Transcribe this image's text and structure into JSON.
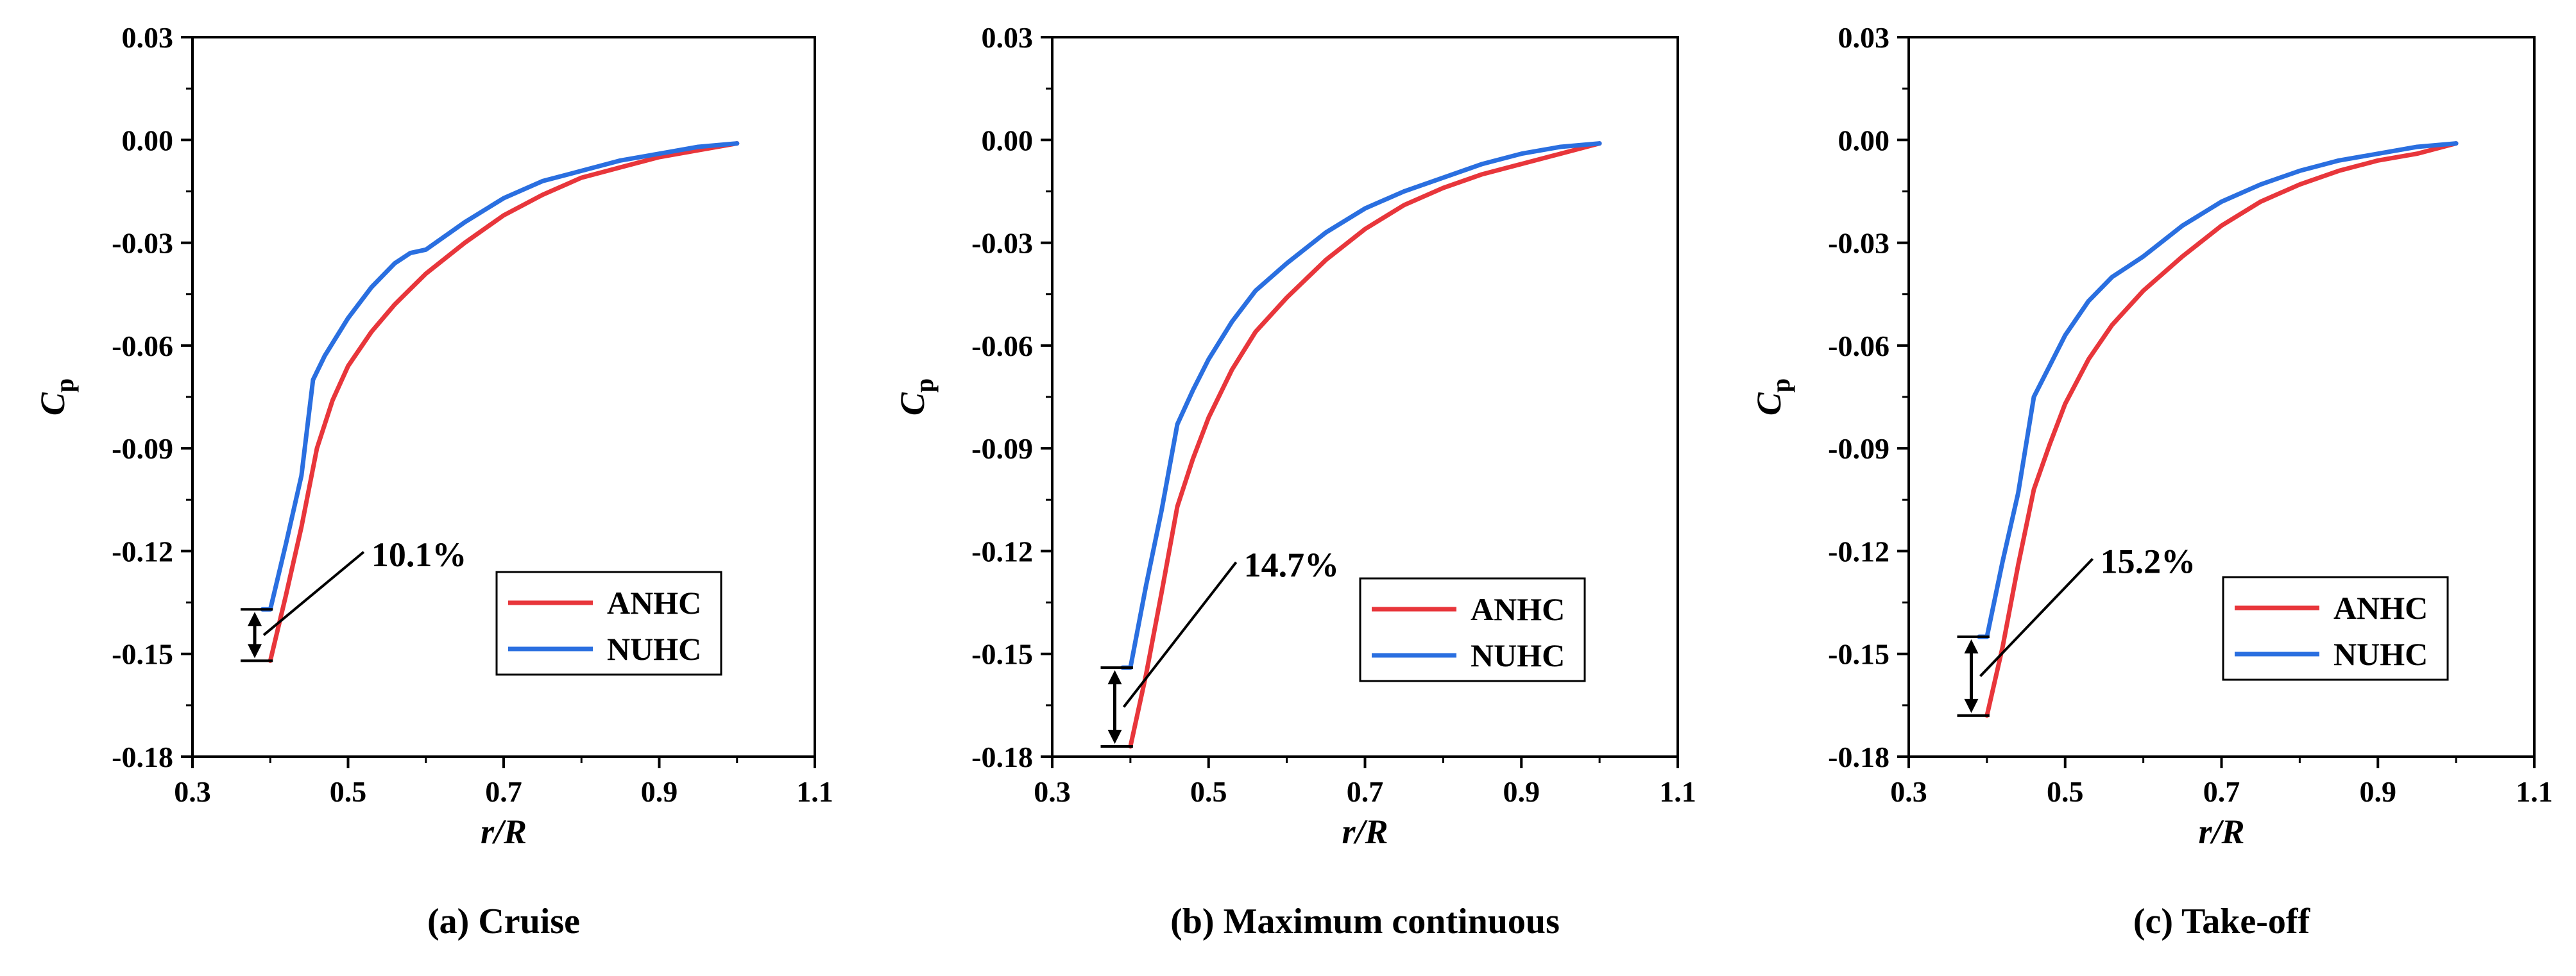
{
  "figure": {
    "captions": [
      "(a) Cruise",
      "(b) Maximum continuous",
      "(c) Take-off"
    ]
  },
  "colors": {
    "ANHC": "#e8363b",
    "NUHC": "#2a6fe0",
    "axis": "#000000"
  },
  "chart_data": [
    {
      "type": "line",
      "title": "(a) Cruise",
      "xlabel": "r/R",
      "ylabel": "Cp",
      "ylabel_main": "C",
      "ylabel_sub": "p",
      "xlim": [
        0.3,
        1.1
      ],
      "ylim": [
        -0.18,
        0.03
      ],
      "xticks": [
        0.3,
        0.5,
        0.7,
        0.9,
        1.1
      ],
      "xtick_labels": [
        "0.3",
        "0.5",
        "0.7",
        "0.9",
        "1.1"
      ],
      "yticks": [
        0.03,
        0.0,
        -0.03,
        -0.06,
        -0.09,
        -0.12,
        -0.15,
        -0.18
      ],
      "ytick_labels": [
        "0.03",
        "0.00",
        "-0.03",
        "-0.06",
        "-0.09",
        "-0.12",
        "-0.15",
        "-0.18"
      ],
      "legend": [
        "ANHC",
        "NUHC"
      ],
      "legend_position": "lower-right",
      "series": [
        {
          "name": "ANHC",
          "x": [
            0.4,
            0.42,
            0.44,
            0.46,
            0.48,
            0.5,
            0.53,
            0.56,
            0.6,
            0.65,
            0.7,
            0.75,
            0.8,
            0.85,
            0.9,
            0.95,
            1.0
          ],
          "y": [
            -0.152,
            -0.133,
            -0.113,
            -0.09,
            -0.076,
            -0.066,
            -0.056,
            -0.048,
            -0.039,
            -0.03,
            -0.022,
            -0.016,
            -0.011,
            -0.008,
            -0.005,
            -0.003,
            -0.001
          ]
        },
        {
          "name": "NUHC",
          "x": [
            0.39,
            0.4,
            0.42,
            0.44,
            0.455,
            0.47,
            0.5,
            0.53,
            0.56,
            0.58,
            0.6,
            0.65,
            0.7,
            0.75,
            0.8,
            0.85,
            0.9,
            0.95,
            1.0
          ],
          "y": [
            -0.137,
            -0.137,
            -0.118,
            -0.098,
            -0.07,
            -0.063,
            -0.052,
            -0.043,
            -0.036,
            -0.033,
            -0.032,
            -0.024,
            -0.017,
            -0.012,
            -0.009,
            -0.006,
            -0.004,
            -0.002,
            -0.001
          ]
        }
      ],
      "annotation": {
        "text": "10.1%",
        "arrow_x": 0.38,
        "arrow_y": [
          -0.137,
          -0.152
        ],
        "label_x": 0.53,
        "label_y": -0.121
      }
    },
    {
      "type": "line",
      "title": "(b) Maximum continuous",
      "xlabel": "r/R",
      "ylabel": "Cp",
      "ylabel_main": "C",
      "ylabel_sub": "p",
      "xlim": [
        0.3,
        1.1
      ],
      "ylim": [
        -0.18,
        0.03
      ],
      "xticks": [
        0.3,
        0.5,
        0.7,
        0.9,
        1.1
      ],
      "xtick_labels": [
        "0.3",
        "0.5",
        "0.7",
        "0.9",
        "1.1"
      ],
      "yticks": [
        0.03,
        0.0,
        -0.03,
        -0.06,
        -0.09,
        -0.12,
        -0.15,
        -0.18
      ],
      "ytick_labels": [
        "0.03",
        "0.00",
        "-0.03",
        "-0.06",
        "-0.09",
        "-0.12",
        "-0.15",
        "-0.18"
      ],
      "legend": [
        "ANHC",
        "NUHC"
      ],
      "legend_position": "lower-right",
      "series": [
        {
          "name": "ANHC",
          "x": [
            0.4,
            0.42,
            0.44,
            0.46,
            0.48,
            0.5,
            0.53,
            0.56,
            0.6,
            0.65,
            0.7,
            0.75,
            0.8,
            0.85,
            0.9,
            0.95,
            1.0
          ],
          "y": [
            -0.177,
            -0.156,
            -0.132,
            -0.107,
            -0.093,
            -0.081,
            -0.067,
            -0.056,
            -0.046,
            -0.035,
            -0.026,
            -0.019,
            -0.014,
            -0.01,
            -0.007,
            -0.004,
            -0.001
          ]
        },
        {
          "name": "NUHC",
          "x": [
            0.39,
            0.4,
            0.42,
            0.44,
            0.46,
            0.48,
            0.5,
            0.53,
            0.56,
            0.58,
            0.6,
            0.65,
            0.7,
            0.75,
            0.8,
            0.85,
            0.9,
            0.95,
            1.0
          ],
          "y": [
            -0.154,
            -0.154,
            -0.13,
            -0.108,
            -0.083,
            -0.073,
            -0.064,
            -0.053,
            -0.044,
            -0.04,
            -0.036,
            -0.027,
            -0.02,
            -0.015,
            -0.011,
            -0.007,
            -0.004,
            -0.002,
            -0.001
          ]
        }
      ],
      "annotation": {
        "text": "14.7%",
        "arrow_x": 0.38,
        "arrow_y": [
          -0.154,
          -0.177
        ],
        "label_x": 0.545,
        "label_y": -0.124
      }
    },
    {
      "type": "line",
      "title": "(c) Take-off",
      "xlabel": "r/R",
      "ylabel": "Cp",
      "ylabel_main": "C",
      "ylabel_sub": "p",
      "xlim": [
        0.3,
        1.1
      ],
      "ylim": [
        -0.18,
        0.03
      ],
      "xticks": [
        0.3,
        0.5,
        0.7,
        0.9,
        1.1
      ],
      "xtick_labels": [
        "0.3",
        "0.5",
        "0.7",
        "0.9",
        "1.1"
      ],
      "yticks": [
        0.03,
        0.0,
        -0.03,
        -0.06,
        -0.09,
        -0.12,
        -0.15,
        -0.18
      ],
      "ytick_labels": [
        "0.03",
        "0.00",
        "-0.03",
        "-0.06",
        "-0.09",
        "-0.12",
        "-0.15",
        "-0.18"
      ],
      "legend": [
        "ANHC",
        "NUHC"
      ],
      "legend_position": "lower-right",
      "series": [
        {
          "name": "ANHC",
          "x": [
            0.4,
            0.42,
            0.44,
            0.46,
            0.48,
            0.5,
            0.53,
            0.56,
            0.6,
            0.65,
            0.7,
            0.75,
            0.8,
            0.85,
            0.9,
            0.95,
            1.0
          ],
          "y": [
            -0.168,
            -0.148,
            -0.124,
            -0.102,
            -0.089,
            -0.077,
            -0.064,
            -0.054,
            -0.044,
            -0.034,
            -0.025,
            -0.018,
            -0.013,
            -0.009,
            -0.006,
            -0.004,
            -0.001
          ]
        },
        {
          "name": "NUHC",
          "x": [
            0.39,
            0.4,
            0.42,
            0.44,
            0.46,
            0.48,
            0.5,
            0.53,
            0.56,
            0.58,
            0.6,
            0.65,
            0.7,
            0.75,
            0.8,
            0.85,
            0.9,
            0.95,
            1.0
          ],
          "y": [
            -0.145,
            -0.145,
            -0.123,
            -0.103,
            -0.075,
            -0.066,
            -0.057,
            -0.047,
            -0.04,
            -0.037,
            -0.034,
            -0.025,
            -0.018,
            -0.013,
            -0.009,
            -0.006,
            -0.004,
            -0.002,
            -0.001
          ]
        }
      ],
      "annotation": {
        "text": "15.2%",
        "arrow_x": 0.38,
        "arrow_y": [
          -0.145,
          -0.168
        ],
        "label_x": 0.545,
        "label_y": -0.123
      }
    }
  ]
}
